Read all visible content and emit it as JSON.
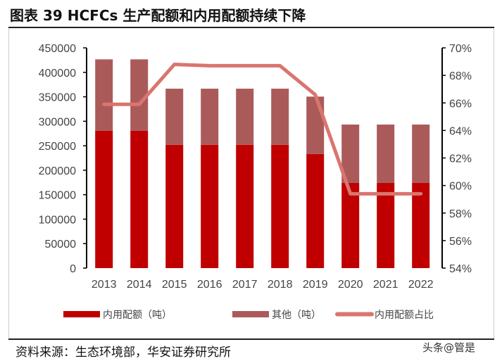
{
  "header": {
    "title": "图表 39 HCFCs 生产配额和内用配额持续下降"
  },
  "footer": {
    "source": "资料来源：生态环境部，华安证券研究所",
    "watermark": "头条@管是"
  },
  "chart_data": {
    "type": "bar",
    "stacked": true,
    "categories": [
      "2013",
      "2014",
      "2015",
      "2016",
      "2017",
      "2018",
      "2019",
      "2020",
      "2021",
      "2022"
    ],
    "series": [
      {
        "name": "内用配额（吨）",
        "type": "bar",
        "axis": "left",
        "color": "#C00000",
        "values": [
          280800,
          280800,
          252000,
          252000,
          252000,
          252000,
          233300,
          174000,
          174000,
          174000
        ]
      },
      {
        "name": "其他（吨）",
        "type": "bar",
        "axis": "left",
        "color": "#AB5A5A",
        "values": [
          145700,
          145700,
          114600,
          114600,
          114600,
          114600,
          117100,
          119300,
          119300,
          119300
        ]
      },
      {
        "name": "内用配额占比",
        "type": "line",
        "axis": "right",
        "color": "#D9756F",
        "values": [
          65.9,
          65.9,
          68.8,
          68.7,
          68.7,
          68.7,
          66.6,
          59.4,
          59.4,
          59.4
        ]
      }
    ],
    "yleft": {
      "lim": [
        0,
        450000
      ],
      "ticks": [
        "0",
        "50000",
        "100000",
        "150000",
        "200000",
        "250000",
        "300000",
        "350000",
        "400000",
        "450000"
      ]
    },
    "yright": {
      "lim": [
        54,
        70
      ],
      "ticks": [
        "54%",
        "56%",
        "58%",
        "60%",
        "62%",
        "64%",
        "66%",
        "68%",
        "70%"
      ]
    },
    "legend": "bottom",
    "grid": false
  }
}
